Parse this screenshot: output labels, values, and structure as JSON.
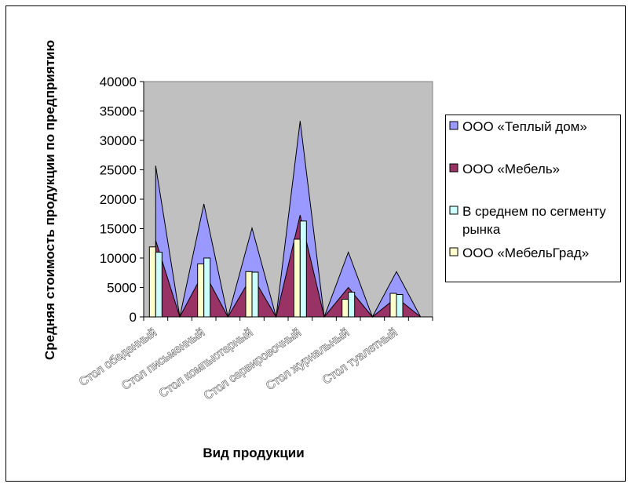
{
  "chart_data": {
    "type": "area",
    "title": "",
    "xlabel": "Вид продукции",
    "ylabel": "Средняя стоимость продукции по предприятию",
    "ylim": [
      0,
      40000
    ],
    "yticks": [
      0,
      5000,
      10000,
      15000,
      20000,
      25000,
      30000,
      35000,
      40000
    ],
    "categories": [
      "Стол обеденный",
      "Стол письменный",
      "Стол компьютерный",
      "Стол сервировочный",
      "Стол журнальный",
      "Стол туалетный"
    ],
    "grid": false,
    "legend_position": "right",
    "plot_background": "#c0c0c0",
    "series": [
      {
        "name": "ООО «Теплый дом»",
        "chart_type": "area",
        "values": [
          25700,
          19200,
          15100,
          33300,
          11000,
          7700
        ],
        "color": "#9999ff"
      },
      {
        "name": "ООО «Мебель»",
        "chart_type": "area",
        "values": [
          13000,
          7700,
          7000,
          17300,
          5000,
          3300
        ],
        "color": "#993366"
      },
      {
        "name": "В среднем по сегменту рынка",
        "chart_type": "bar",
        "values": [
          11000,
          10000,
          7600,
          16300,
          4200,
          3800
        ],
        "color": "#ccffff"
      },
      {
        "name": "ООО «МебельГрад»",
        "chart_type": "bar",
        "values": [
          11900,
          9000,
          7700,
          13200,
          3000,
          4000
        ],
        "color": "#ffffcc"
      }
    ]
  }
}
